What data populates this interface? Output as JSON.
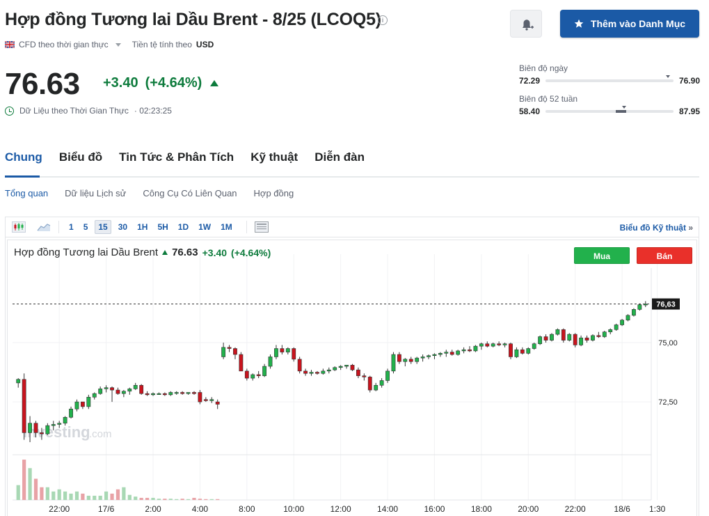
{
  "header": {
    "title": "Hợp đồng Tương lai Dầu Brent - 8/25 (LCOQ5)",
    "info_icon": "info-icon",
    "alert_icon": "bell-plus-icon",
    "watchlist_label": "Thêm vào Danh Mục",
    "watchlist_icon": "star-icon"
  },
  "meta": {
    "cfd_label": "CFD theo thời gian thực",
    "currency_label": "Tiền tệ tính theo",
    "currency": "USD"
  },
  "quote": {
    "price": "76.63",
    "change": "+3.40",
    "change_pct": "(+4.64%)",
    "realtime_label": "Dữ Liệu theo Thời Gian Thực",
    "time": "02:23:25",
    "up_color": "#0d7b3c"
  },
  "day_range": {
    "label": "Biên độ ngày",
    "low": "72.29",
    "high": "76.90",
    "position": 0.94
  },
  "week52_range": {
    "label": "Biên độ 52 tuần",
    "low": "58.40",
    "high": "87.95",
    "fill_start": 0.55,
    "fill_end": 0.63,
    "position": 0.6
  },
  "tabs": [
    {
      "label": "Chung",
      "active": true
    },
    {
      "label": "Biểu đồ",
      "active": false
    },
    {
      "label": "Tin Tức & Phân Tích",
      "active": false
    },
    {
      "label": "Kỹ thuật",
      "active": false
    },
    {
      "label": "Diễn đàn",
      "active": false
    }
  ],
  "subtabs": [
    {
      "label": "Tổng quan",
      "active": true
    },
    {
      "label": "Dữ liệu Lịch sử",
      "active": false
    },
    {
      "label": "Công Cụ Có Liên Quan",
      "active": false
    },
    {
      "label": "Hợp đồng",
      "active": false
    }
  ],
  "toolbar": {
    "timeframes": [
      "1",
      "5",
      "15",
      "30",
      "1H",
      "5H",
      "1D",
      "1W",
      "1M"
    ],
    "active_timeframe": "15",
    "technical_chart_label": "Biểu đồ Kỹ thuật",
    "technical_chart_arrow": "»"
  },
  "chart_header": {
    "name": "Hợp đồng Tương lai Dầu Brent",
    "price": "76.63",
    "change": "+3.40",
    "change_pct": "(+4.64%)",
    "buy_label": "Mua",
    "sell_label": "Bán",
    "buy_color": "#22b14c",
    "sell_color": "#e9302a"
  },
  "watermark": {
    "brand": "Investing",
    "suffix": ".com"
  },
  "chart_data": {
    "type": "candlestick",
    "y_ticks": [
      "75,00",
      "72,50"
    ],
    "y_tick_values": [
      75.0,
      72.5
    ],
    "last_price_label": "76,63",
    "last_price": 76.63,
    "ylim": [
      70.3,
      77.85
    ],
    "x_ticks": [
      "22:00",
      "17/6",
      "2:00",
      "4:00",
      "8:00",
      "10:00",
      "12:00",
      "14:00",
      "16:00",
      "18:00",
      "20:00",
      "22:00",
      "18/6",
      "1:30"
    ],
    "x_tick_index": [
      7,
      15,
      23,
      31,
      39,
      47,
      55,
      63,
      71,
      79,
      87,
      95,
      103,
      109
    ],
    "up_color": "#22b14c",
    "down_color": "#c8141e",
    "candles": [
      [
        73.3,
        73.5,
        73.1,
        73.45
      ],
      [
        73.45,
        73.7,
        70.9,
        71.2
      ],
      [
        71.2,
        71.9,
        70.8,
        71.6
      ],
      [
        71.6,
        71.7,
        71.0,
        71.2
      ],
      [
        71.2,
        71.4,
        70.9,
        71.15
      ],
      [
        71.15,
        71.6,
        71.1,
        71.5
      ],
      [
        71.5,
        71.7,
        71.3,
        71.55
      ],
      [
        71.55,
        71.7,
        71.4,
        71.6
      ],
      [
        71.6,
        71.9,
        71.5,
        71.85
      ],
      [
        71.85,
        72.3,
        71.8,
        72.2
      ],
      [
        72.2,
        72.6,
        72.1,
        72.5
      ],
      [
        72.5,
        72.5,
        72.2,
        72.3
      ],
      [
        72.3,
        72.8,
        72.2,
        72.7
      ],
      [
        72.7,
        72.9,
        72.6,
        72.85
      ],
      [
        72.85,
        73.15,
        72.8,
        73.05
      ],
      [
        73.05,
        73.2,
        72.9,
        73.1
      ],
      [
        73.1,
        73.15,
        72.5,
        73.0
      ],
      [
        73.0,
        73.1,
        72.8,
        72.85
      ],
      [
        72.85,
        73.0,
        72.7,
        72.95
      ],
      [
        72.95,
        73.1,
        72.8,
        73.05
      ],
      [
        73.05,
        73.3,
        73.0,
        73.2
      ],
      [
        73.2,
        73.25,
        72.8,
        72.85
      ],
      [
        72.85,
        72.95,
        72.75,
        72.8
      ],
      [
        72.8,
        72.9,
        72.75,
        72.85
      ],
      [
        72.85,
        72.9,
        72.8,
        72.85
      ],
      [
        72.85,
        72.9,
        72.75,
        72.8
      ],
      [
        72.8,
        72.95,
        72.75,
        72.9
      ],
      [
        72.9,
        72.95,
        72.8,
        72.9
      ],
      [
        72.9,
        72.95,
        72.8,
        72.85
      ],
      [
        72.85,
        72.9,
        72.8,
        72.9
      ],
      [
        72.9,
        72.95,
        72.8,
        72.85
      ],
      [
        72.9,
        73.0,
        72.4,
        72.5
      ],
      [
        72.6,
        72.7,
        72.5,
        72.55
      ],
      [
        72.55,
        72.7,
        72.45,
        72.6
      ],
      [
        72.5,
        72.6,
        72.2,
        72.4
      ],
      [
        74.4,
        75.0,
        74.3,
        74.8
      ],
      [
        74.8,
        74.9,
        74.6,
        74.75
      ],
      [
        74.75,
        74.8,
        74.3,
        74.5
      ],
      [
        74.5,
        74.6,
        73.8,
        73.8
      ],
      [
        73.8,
        73.9,
        73.4,
        73.5
      ],
      [
        73.5,
        73.7,
        73.4,
        73.65
      ],
      [
        73.65,
        73.8,
        73.5,
        73.6
      ],
      [
        73.6,
        74.1,
        73.55,
        74.0
      ],
      [
        74.0,
        74.5,
        73.9,
        74.4
      ],
      [
        74.4,
        74.9,
        74.3,
        74.75
      ],
      [
        74.75,
        74.9,
        74.5,
        74.6
      ],
      [
        74.6,
        74.8,
        74.5,
        74.75
      ],
      [
        74.75,
        74.8,
        74.2,
        74.3
      ],
      [
        74.3,
        74.4,
        73.7,
        73.8
      ],
      [
        73.8,
        73.9,
        73.6,
        73.7
      ],
      [
        73.7,
        73.85,
        73.6,
        73.75
      ],
      [
        73.75,
        73.8,
        73.65,
        73.7
      ],
      [
        73.7,
        73.9,
        73.65,
        73.8
      ],
      [
        73.8,
        73.95,
        73.7,
        73.85
      ],
      [
        73.85,
        74.0,
        73.8,
        73.95
      ],
      [
        73.95,
        74.05,
        73.85,
        74.0
      ],
      [
        74.0,
        74.05,
        73.9,
        74.05
      ],
      [
        74.05,
        74.1,
        73.8,
        73.85
      ],
      [
        73.85,
        73.95,
        73.5,
        73.6
      ],
      [
        73.6,
        73.7,
        73.4,
        73.55
      ],
      [
        73.55,
        73.6,
        72.9,
        73.0
      ],
      [
        73.0,
        73.3,
        72.95,
        73.2
      ],
      [
        73.2,
        73.5,
        73.1,
        73.4
      ],
      [
        73.4,
        73.9,
        73.3,
        73.8
      ],
      [
        73.8,
        74.6,
        73.7,
        74.5
      ],
      [
        74.5,
        74.6,
        74.1,
        74.2
      ],
      [
        74.2,
        74.35,
        74.0,
        74.3
      ],
      [
        74.3,
        74.4,
        74.1,
        74.2
      ],
      [
        74.2,
        74.4,
        74.1,
        74.35
      ],
      [
        74.35,
        74.5,
        74.2,
        74.4
      ],
      [
        74.4,
        74.5,
        74.3,
        74.45
      ],
      [
        74.45,
        74.55,
        74.3,
        74.5
      ],
      [
        74.5,
        74.6,
        74.4,
        74.55
      ],
      [
        74.55,
        74.7,
        74.4,
        74.6
      ],
      [
        74.6,
        74.7,
        74.45,
        74.5
      ],
      [
        74.5,
        74.7,
        74.45,
        74.65
      ],
      [
        74.65,
        74.8,
        74.55,
        74.7
      ],
      [
        74.7,
        74.85,
        74.6,
        74.65
      ],
      [
        74.65,
        74.9,
        74.6,
        74.85
      ],
      [
        74.85,
        75.0,
        74.7,
        74.95
      ],
      [
        74.95,
        75.05,
        74.8,
        74.85
      ],
      [
        74.85,
        75.0,
        74.8,
        74.95
      ],
      [
        74.95,
        75.05,
        74.85,
        74.9
      ],
      [
        74.9,
        75.0,
        74.8,
        74.95
      ],
      [
        74.95,
        75.0,
        74.3,
        74.4
      ],
      [
        74.4,
        74.8,
        74.35,
        74.7
      ],
      [
        74.7,
        74.8,
        74.5,
        74.55
      ],
      [
        74.55,
        74.8,
        74.5,
        74.75
      ],
      [
        74.75,
        75.0,
        74.7,
        74.95
      ],
      [
        74.95,
        75.3,
        74.9,
        75.25
      ],
      [
        75.25,
        75.35,
        75.0,
        75.1
      ],
      [
        75.1,
        75.4,
        75.05,
        75.35
      ],
      [
        75.35,
        75.6,
        75.3,
        75.55
      ],
      [
        75.55,
        75.6,
        75.0,
        75.1
      ],
      [
        75.1,
        75.4,
        75.05,
        75.35
      ],
      [
        75.35,
        75.4,
        74.8,
        74.9
      ],
      [
        74.9,
        75.3,
        74.85,
        75.2
      ],
      [
        75.2,
        75.3,
        75.0,
        75.1
      ],
      [
        75.1,
        75.35,
        75.05,
        75.3
      ],
      [
        75.3,
        75.45,
        75.2,
        75.25
      ],
      [
        75.25,
        75.5,
        75.2,
        75.45
      ],
      [
        75.45,
        75.6,
        75.35,
        75.55
      ],
      [
        75.55,
        75.8,
        75.5,
        75.75
      ],
      [
        75.75,
        76.0,
        75.7,
        75.95
      ],
      [
        75.95,
        76.2,
        75.9,
        76.15
      ],
      [
        76.15,
        76.45,
        76.1,
        76.4
      ],
      [
        76.4,
        76.65,
        76.35,
        76.6
      ],
      [
        76.6,
        76.75,
        76.5,
        76.63
      ]
    ],
    "volumes": [
      0.35,
      0.95,
      0.75,
      0.5,
      0.3,
      0.3,
      0.2,
      0.25,
      0.2,
      0.15,
      0.2,
      0.15,
      0.1,
      0.1,
      0.1,
      0.2,
      0.15,
      0.25,
      0.3,
      0.12,
      0.08,
      0.05,
      0.05,
      0.05,
      0.03,
      0.03,
      0.03,
      0.02,
      0.03,
      0.02,
      0.05,
      0.03,
      0.02,
      0.02,
      0.02
    ]
  }
}
